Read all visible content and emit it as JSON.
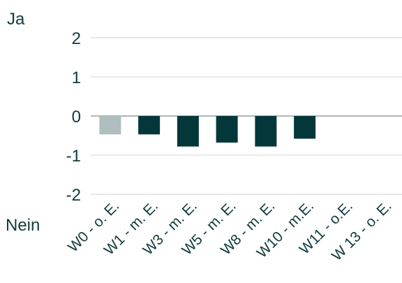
{
  "chart_data": {
    "type": "bar",
    "categories": [
      "W0 - o. E.",
      "W1 - m. E.",
      "W3 - m. E.",
      "W5 - m. E.",
      "W8 - m. E.",
      "W10 - m.E.",
      "W11 - o.E.",
      "W 13 - o. E."
    ],
    "values": [
      -0.47,
      -0.47,
      -0.78,
      -0.68,
      -0.78,
      -0.58,
      null,
      null
    ],
    "ylim": [
      -2,
      2
    ],
    "yticks": [
      2,
      1,
      0,
      -1,
      -2
    ],
    "top_label": "Ja",
    "bottom_label": "Nein",
    "grid": true,
    "colors": {
      "first_bar": "#aebdbd",
      "bars": "#03373a",
      "text": "#0f3b3b",
      "grid": "#d3d3d3",
      "zero_line": "#7f8c8c"
    }
  }
}
